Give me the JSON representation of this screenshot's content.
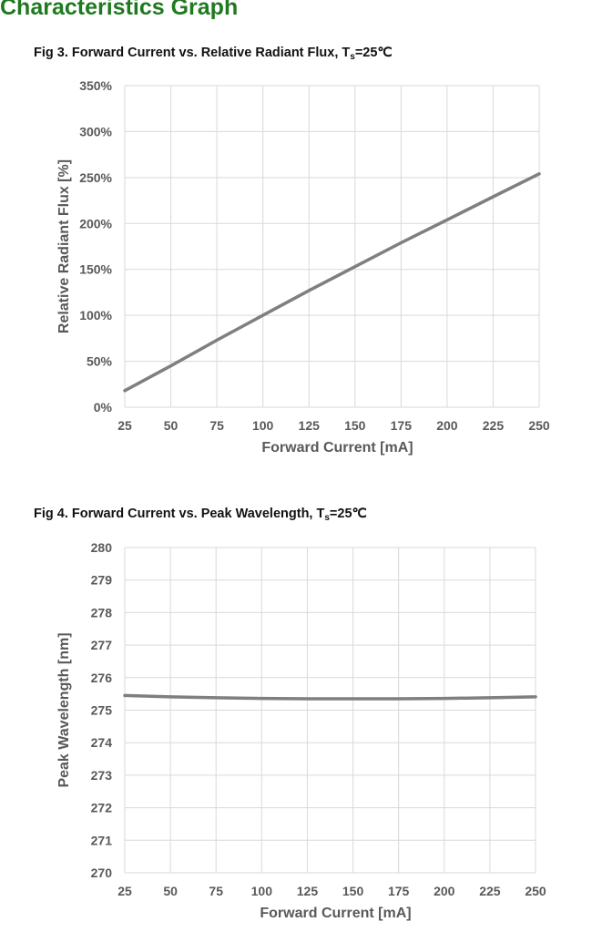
{
  "page": {
    "heading": "Characteristics Graph"
  },
  "colors": {
    "heading": "#1f7a1f",
    "line": "#7f7f7f",
    "grid": "#d9d9d9",
    "axis_text": "#595959"
  },
  "figures": [
    {
      "title_prefix": "Fig 3. Forward Current vs. Relative Radiant Flux, T",
      "title_sub": "s",
      "title_suffix": "=25℃"
    },
    {
      "title_prefix": "Fig 4. Forward Current vs. Peak Wavelength, T",
      "title_sub": "s",
      "title_suffix": "=25℃"
    }
  ],
  "chart_data": [
    {
      "type": "line",
      "title": "Fig 3. Forward Current vs. Relative Radiant Flux, Ts=25℃",
      "xlabel": "Forward Current [mA]",
      "ylabel": "Relative Radiant Flux [%]",
      "xlim": [
        25,
        250
      ],
      "ylim": [
        0,
        350
      ],
      "x_ticks": [
        25,
        50,
        75,
        100,
        125,
        150,
        175,
        200,
        225,
        250
      ],
      "y_ticks": [
        0,
        50,
        100,
        150,
        200,
        250,
        300,
        350
      ],
      "y_tick_labels": [
        "0%",
        "50%",
        "100%",
        "150%",
        "200%",
        "250%",
        "300%",
        "350%"
      ],
      "grid": true,
      "legend": "none",
      "series": [
        {
          "x": [
            25,
            50,
            75,
            100,
            125,
            150,
            175,
            200,
            225,
            250
          ],
          "y": [
            18,
            45,
            73,
            100,
            127,
            153,
            179,
            204,
            229,
            254
          ]
        }
      ]
    },
    {
      "type": "line",
      "title": "Fig 4. Forward Current vs. Peak Wavelength, Ts=25℃",
      "xlabel": "Forward Current [mA]",
      "ylabel": "Peak Wavelength [nm]",
      "xlim": [
        25,
        250
      ],
      "ylim": [
        270,
        280
      ],
      "x_ticks": [
        25,
        50,
        75,
        100,
        125,
        150,
        175,
        200,
        225,
        250
      ],
      "y_ticks": [
        270,
        271,
        272,
        273,
        274,
        275,
        276,
        277,
        278,
        279,
        280
      ],
      "y_tick_labels": [
        "270",
        "271",
        "272",
        "273",
        "274",
        "275",
        "276",
        "277",
        "278",
        "279",
        "280"
      ],
      "grid": true,
      "legend": "none",
      "series": [
        {
          "x": [
            25,
            50,
            75,
            100,
            125,
            150,
            175,
            200,
            225,
            250
          ],
          "y": [
            275.45,
            275.41,
            275.38,
            275.36,
            275.35,
            275.35,
            275.35,
            275.36,
            275.38,
            275.41
          ]
        }
      ]
    }
  ]
}
